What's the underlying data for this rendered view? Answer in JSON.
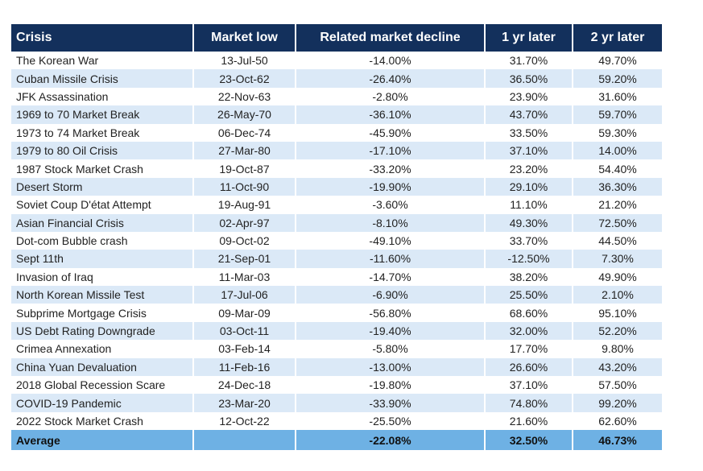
{
  "headers": [
    "Crisis",
    "Market low",
    "Related market decline",
    "1 yr later",
    "2 yr later"
  ],
  "rows": [
    [
      "The Korean War",
      "13-Jul-50",
      "-14.00%",
      "31.70%",
      "49.70%"
    ],
    [
      "Cuban Missile Crisis",
      "23-Oct-62",
      "-26.40%",
      "36.50%",
      "59.20%"
    ],
    [
      "JFK Assassination",
      "22-Nov-63",
      "-2.80%",
      "23.90%",
      "31.60%"
    ],
    [
      "1969 to 70 Market Break",
      "26-May-70",
      "-36.10%",
      "43.70%",
      "59.70%"
    ],
    [
      "1973 to 74 Market Break",
      "06-Dec-74",
      "-45.90%",
      "33.50%",
      "59.30%"
    ],
    [
      "1979 to 80 Oil Crisis",
      "27-Mar-80",
      "-17.10%",
      "37.10%",
      "14.00%"
    ],
    [
      "1987 Stock Market Crash",
      "19-Oct-87",
      "-33.20%",
      "23.20%",
      "54.40%"
    ],
    [
      "Desert Storm",
      "11-Oct-90",
      "-19.90%",
      "29.10%",
      "36.30%"
    ],
    [
      "Soviet Coup D'état Attempt",
      "19-Aug-91",
      "-3.60%",
      "11.10%",
      "21.20%"
    ],
    [
      "Asian Financial Crisis",
      "02-Apr-97",
      "-8.10%",
      "49.30%",
      "72.50%"
    ],
    [
      "Dot-com Bubble crash",
      "09-Oct-02",
      "-49.10%",
      "33.70%",
      "44.50%"
    ],
    [
      "Sept 11th",
      "21-Sep-01",
      "-11.60%",
      "-12.50%",
      "7.30%"
    ],
    [
      "Invasion of Iraq",
      "11-Mar-03",
      "-14.70%",
      "38.20%",
      "49.90%"
    ],
    [
      "North Korean Missile Test",
      "17-Jul-06",
      "-6.90%",
      "25.50%",
      "2.10%"
    ],
    [
      "Subprime Mortgage Crisis",
      "09-Mar-09",
      "-56.80%",
      "68.60%",
      "95.10%"
    ],
    [
      "US Debt Rating Downgrade",
      "03-Oct-11",
      "-19.40%",
      "32.00%",
      "52.20%"
    ],
    [
      "Crimea Annexation",
      "03-Feb-14",
      "-5.80%",
      "17.70%",
      "9.80%"
    ],
    [
      "China Yuan Devaluation",
      "11-Feb-16",
      "-13.00%",
      "26.60%",
      "43.20%"
    ],
    [
      "2018 Global Recession Scare",
      "24-Dec-18",
      "-19.80%",
      "37.10%",
      "57.50%"
    ],
    [
      "COVID-19 Pandemic",
      "23-Mar-20",
      "-33.90%",
      "74.80%",
      "99.20%"
    ],
    [
      "2022 Stock Market Crash",
      "12-Oct-22",
      "-25.50%",
      "21.60%",
      "62.60%"
    ]
  ],
  "average": [
    "Average",
    "",
    "-22.08%",
    "32.50%",
    "46.73%"
  ],
  "colors": {
    "header_bg": "#13305c",
    "row_alt_bg": "#dbe9f7",
    "footer_bg": "#6eb1e4"
  }
}
